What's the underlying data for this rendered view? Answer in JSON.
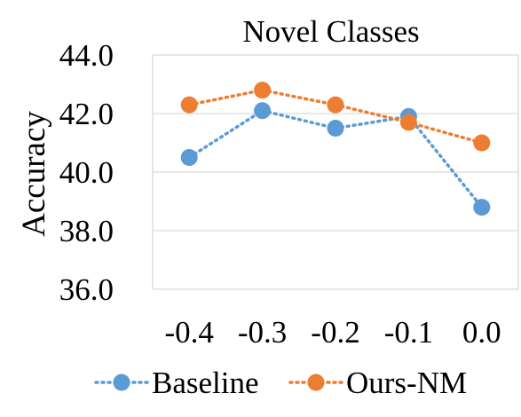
{
  "chart_data": {
    "type": "line",
    "title": "Novel Classes",
    "xlabel": "",
    "ylabel": "Accuracy",
    "categories": [
      "-0.4",
      "-0.3",
      "-0.2",
      "-0.1",
      "0.0"
    ],
    "ylim": [
      36.0,
      44.0
    ],
    "yticks": [
      "36.0",
      "38.0",
      "40.0",
      "42.0",
      "44.0"
    ],
    "grid": true,
    "legend": "bottom",
    "series": [
      {
        "name": "Baseline",
        "color": "#5B9BD5",
        "values": [
          40.5,
          42.1,
          41.5,
          41.9,
          38.8
        ]
      },
      {
        "name": "Ours-NM",
        "color": "#ED7D31",
        "values": [
          42.3,
          42.8,
          42.3,
          41.7,
          41.0
        ]
      }
    ]
  }
}
